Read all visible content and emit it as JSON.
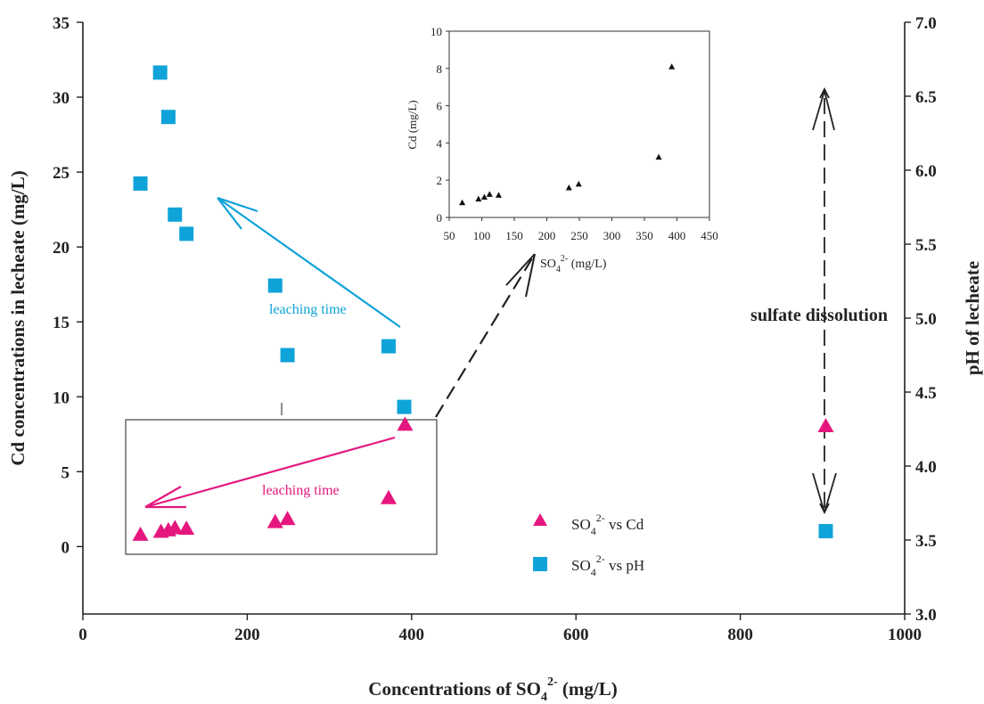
{
  "chart_data": {
    "type": "scatter",
    "xlabel": "Concentrations of SO",
    "xlabel_sub": "4",
    "xlabel_sup": "2-",
    "xlabel_unit": " (mg/L)",
    "ylabel_left": "Cd concentrations in lecheate (mg/L)",
    "ylabel_right": "pH of lecheate",
    "xlim": [
      0,
      1000
    ],
    "ylim_left": [
      -4.5,
      35
    ],
    "ylim_right": [
      3.0,
      7.0
    ],
    "x_ticks": [
      "0",
      "200",
      "400",
      "600",
      "800",
      "1000"
    ],
    "y_left_ticks": [
      "0",
      "5",
      "10",
      "15",
      "20",
      "25",
      "30",
      "35"
    ],
    "y_right_ticks": [
      "3.0",
      "3.5",
      "4.0",
      "4.5",
      "5.0",
      "5.5",
      "6.0",
      "6.5",
      "7.0"
    ],
    "series": [
      {
        "name": "SO42- vs Cd",
        "axis": "left",
        "marker": "triangle",
        "color": "#e5177e",
        "points": [
          [
            70,
            0.8
          ],
          [
            95,
            1.0
          ],
          [
            104,
            1.1
          ],
          [
            112,
            1.25
          ],
          [
            126,
            1.2
          ],
          [
            234,
            1.65
          ],
          [
            249,
            1.85
          ],
          [
            372,
            3.25
          ],
          [
            392,
            8.15
          ],
          [
            904,
            8.05
          ]
        ]
      },
      {
        "name": "SO42- vs pH",
        "axis": "right",
        "marker": "square",
        "color": "#0fa3d9",
        "points": [
          [
            70,
            5.91
          ],
          [
            94,
            6.66
          ],
          [
            104,
            6.36
          ],
          [
            112,
            5.7
          ],
          [
            126,
            5.57
          ],
          [
            234,
            5.22
          ],
          [
            249,
            4.75
          ],
          [
            372,
            4.81
          ],
          [
            391,
            4.4
          ],
          [
            904,
            3.56
          ]
        ]
      }
    ],
    "legend": [
      {
        "label": "SO",
        "sub": "4",
        "sup": "2-",
        "suffix": " vs Cd"
      },
      {
        "label": "SO",
        "sub": "4",
        "sup": "2-",
        "suffix": " vs pH"
      }
    ],
    "legend_placement": "bottom-center",
    "annotations": {
      "leaching_time_blue": "leaching time",
      "leaching_time_pink": "leaching time",
      "sulfate_dissolution": "sulfate dissolution"
    },
    "inset": {
      "type": "scatter",
      "xlabel": "SO",
      "xlabel_sub": "4",
      "xlabel_sup": "2-",
      "xlabel_unit": " (mg/L)",
      "ylabel": "Cd (mg/L)",
      "xlim": [
        50,
        450
      ],
      "ylim": [
        0,
        10
      ],
      "x_ticks": [
        "50",
        "100",
        "150",
        "200",
        "250",
        "300",
        "350",
        "400",
        "450"
      ],
      "y_ticks": [
        "0",
        "2",
        "4",
        "6",
        "8",
        "10"
      ],
      "points": [
        [
          70,
          0.8
        ],
        [
          95,
          1.0
        ],
        [
          104,
          1.1
        ],
        [
          112,
          1.25
        ],
        [
          126,
          1.2
        ],
        [
          234,
          1.6
        ],
        [
          249,
          1.8
        ],
        [
          372,
          3.25
        ],
        [
          392,
          8.1
        ]
      ]
    }
  }
}
